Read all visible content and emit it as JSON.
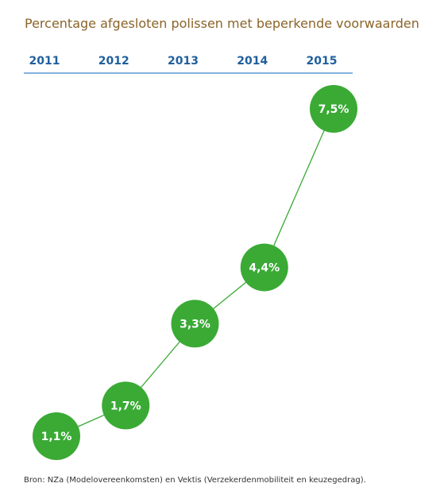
{
  "title": "Percentage afgesloten polissen met beperkende voorwaarden",
  "source": "Bron: NZa (Modelovereenkomsten) en Vektis (Verzekerdenmobiliteit en keuzegedrag).",
  "colors": {
    "title": "#8a6428",
    "year_label": "#1f5f9e",
    "axis_line": "#5b9ad6",
    "marker": "#3aaa35",
    "connector": "#3aaa35",
    "marker_text": "#ffffff"
  },
  "chart_data": {
    "type": "line",
    "categories": [
      "2011",
      "2012",
      "2013",
      "2014",
      "2015"
    ],
    "values": [
      1.1,
      1.7,
      3.3,
      4.4,
      7.5
    ],
    "labels": [
      "1,1%",
      "1,7%",
      "3,3%",
      "4,4%",
      "7,5%"
    ],
    "title": "Percentage afgesloten polissen met beperkende voorwaarden",
    "xlabel": "",
    "ylabel": "",
    "ylim": [
      1.1,
      7.5
    ],
    "x_axis_position": "top",
    "grid": false,
    "legend": "none"
  }
}
